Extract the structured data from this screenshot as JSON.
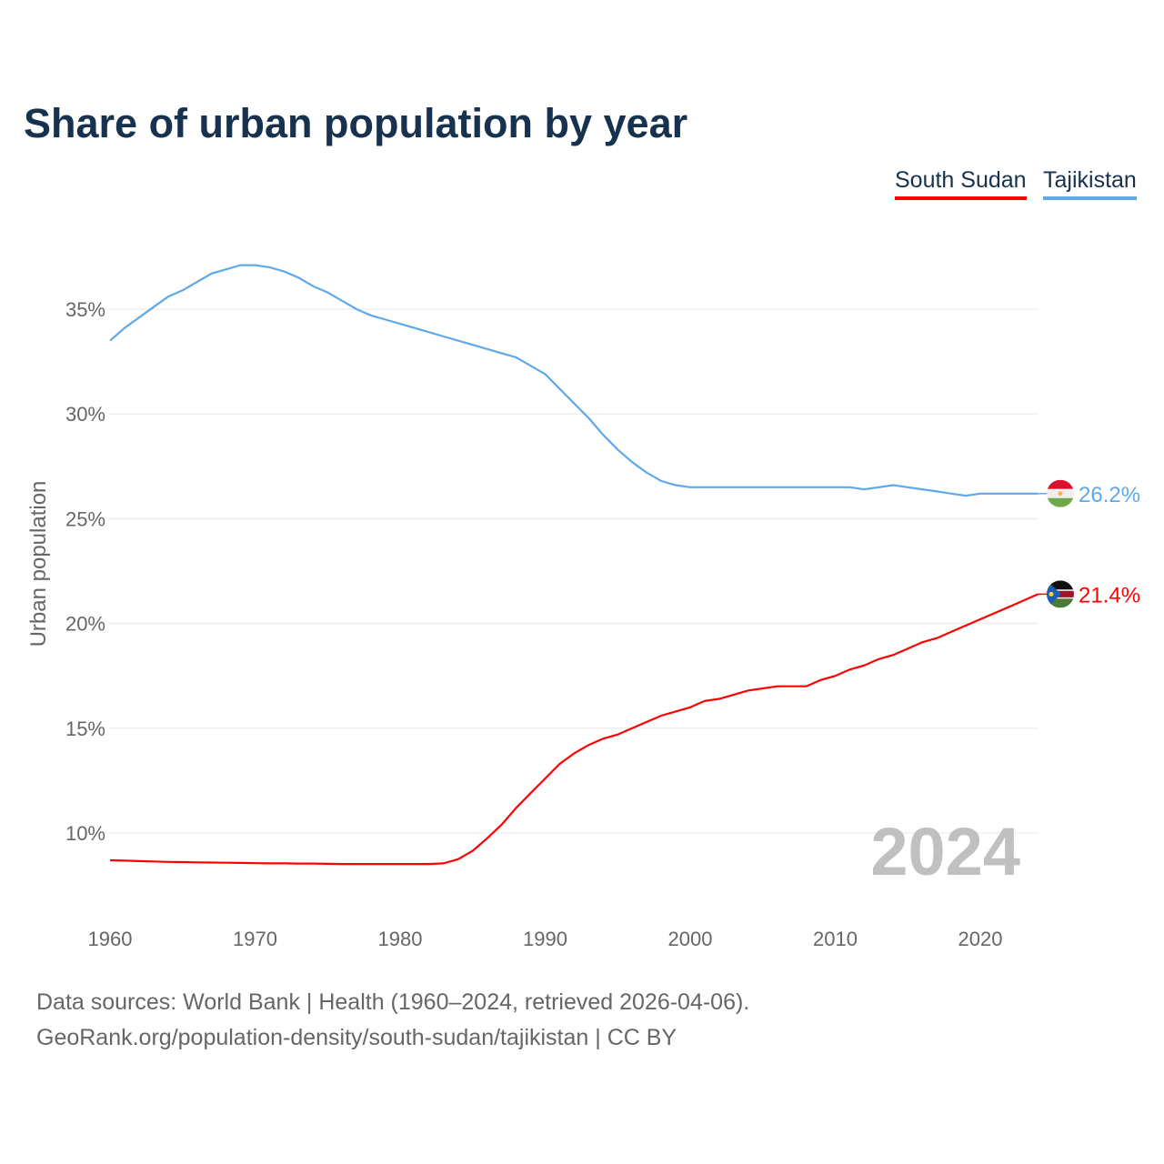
{
  "chart_data": {
    "type": "line",
    "title": "Share of urban population by year",
    "xlabel": "",
    "ylabel": "Urban population",
    "xlim": [
      1960,
      2024
    ],
    "ylim": [
      7,
      38
    ],
    "x_ticks": [
      "1960",
      "1970",
      "1980",
      "1990",
      "2000",
      "2010",
      "2020"
    ],
    "y_ticks": [
      {
        "v": 10,
        "label": "10%"
      },
      {
        "v": 15,
        "label": "15%"
      },
      {
        "v": 20,
        "label": "20%"
      },
      {
        "v": 25,
        "label": "25%"
      },
      {
        "v": 30,
        "label": "30%"
      },
      {
        "v": 35,
        "label": "35%"
      }
    ],
    "grid": true,
    "legend_placement": "top-right",
    "year_watermark": "2024",
    "x_start": 1960,
    "series": [
      {
        "name": "South Sudan",
        "color": "#ff0000",
        "end_label": "21.4%",
        "values": [
          8.7,
          8.68,
          8.66,
          8.64,
          8.62,
          8.61,
          8.6,
          8.59,
          8.58,
          8.57,
          8.56,
          8.55,
          8.55,
          8.54,
          8.54,
          8.53,
          8.52,
          8.52,
          8.52,
          8.52,
          8.52,
          8.52,
          8.52,
          8.55,
          8.75,
          9.15,
          9.75,
          10.4,
          11.2,
          11.9,
          12.6,
          13.3,
          13.8,
          14.2,
          14.5,
          14.7,
          15.0,
          15.3,
          15.6,
          15.8,
          16.0,
          16.3,
          16.4,
          16.6,
          16.8,
          16.9,
          17.0,
          17.0,
          17.0,
          17.3,
          17.5,
          17.8,
          18.0,
          18.3,
          18.5,
          18.8,
          19.1,
          19.3,
          19.6,
          19.9,
          20.2,
          20.5,
          20.8,
          21.1,
          21.4
        ]
      },
      {
        "name": "Tajikistan",
        "color": "#5fa8ea",
        "end_label": "26.2%",
        "values": [
          33.5,
          34.1,
          34.6,
          35.1,
          35.6,
          35.9,
          36.3,
          36.7,
          36.9,
          37.1,
          37.1,
          37.0,
          36.8,
          36.5,
          36.1,
          35.8,
          35.4,
          35.0,
          34.7,
          34.5,
          34.3,
          34.1,
          33.9,
          33.7,
          33.5,
          33.3,
          33.1,
          32.9,
          32.7,
          32.3,
          31.9,
          31.2,
          30.5,
          29.8,
          29.0,
          28.3,
          27.7,
          27.2,
          26.8,
          26.6,
          26.5,
          26.5,
          26.5,
          26.5,
          26.5,
          26.5,
          26.5,
          26.5,
          26.5,
          26.5,
          26.5,
          26.5,
          26.4,
          26.5,
          26.6,
          26.5,
          26.4,
          26.3,
          26.2,
          26.1,
          26.2,
          26.2,
          26.2,
          26.2,
          26.2
        ]
      }
    ]
  },
  "footer": {
    "line1": "Data sources: World Bank | Health (1960–2024, retrieved 2026-04-06).",
    "line2": "GeoRank.org/population-density/south-sudan/tajikistan | CC BY"
  }
}
